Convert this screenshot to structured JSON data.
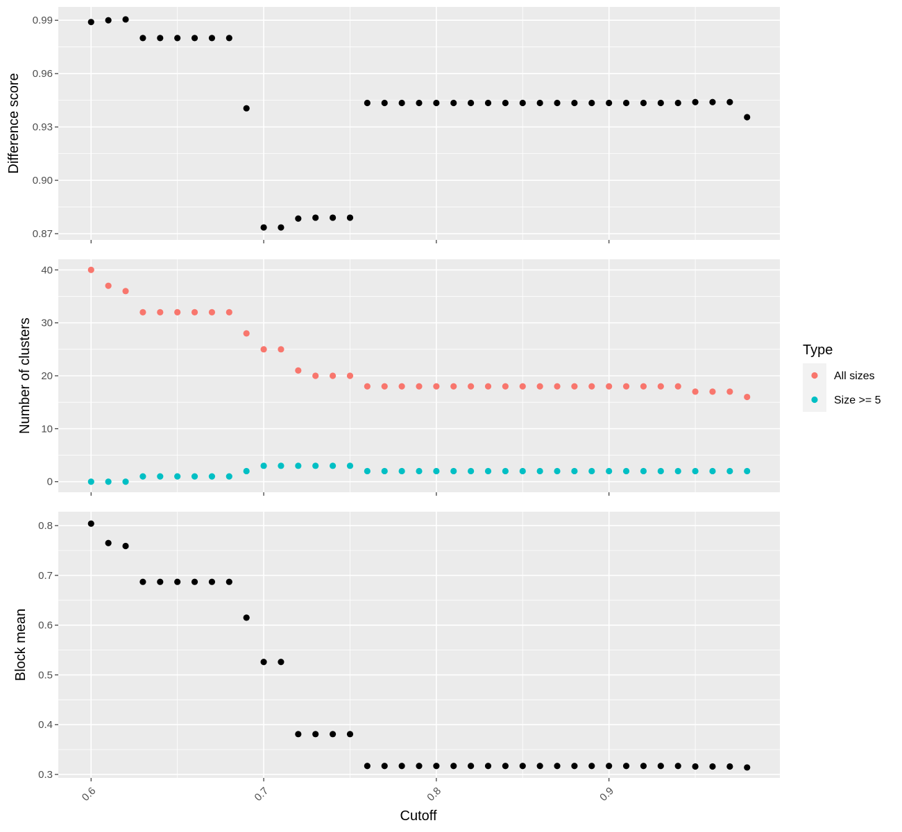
{
  "chart_data": [
    {
      "type": "scatter",
      "ylabel": "Difference score",
      "xlabel": "",
      "xlim": [
        0.581,
        0.999
      ],
      "ylim": [
        0.8665,
        0.9975
      ],
      "yticks": [
        "0.87",
        "0.90",
        "0.93",
        "0.96",
        "0.99"
      ],
      "yticks_values": [
        0.87,
        0.9,
        0.93,
        0.96,
        0.99
      ],
      "grid": true,
      "x": [
        0.6,
        0.61,
        0.62,
        0.63,
        0.64,
        0.65,
        0.66,
        0.67,
        0.68,
        0.69,
        0.7,
        0.71,
        0.72,
        0.73,
        0.74,
        0.75,
        0.76,
        0.77,
        0.78,
        0.79,
        0.8,
        0.81,
        0.82,
        0.83,
        0.84,
        0.85,
        0.86,
        0.87,
        0.88,
        0.89,
        0.9,
        0.91,
        0.92,
        0.93,
        0.94,
        0.95,
        0.96,
        0.97,
        0.98
      ],
      "series": [
        {
          "color": "#000000",
          "values": [
            0.989,
            0.99,
            0.9905,
            0.98,
            0.98,
            0.98,
            0.98,
            0.98,
            0.98,
            0.9405,
            0.8735,
            0.8735,
            0.8785,
            0.879,
            0.879,
            0.879,
            0.9435,
            0.9435,
            0.9435,
            0.9435,
            0.9435,
            0.9435,
            0.9435,
            0.9435,
            0.9435,
            0.9435,
            0.9435,
            0.9435,
            0.9435,
            0.9435,
            0.9435,
            0.9435,
            0.9435,
            0.9435,
            0.9435,
            0.944,
            0.944,
            0.944,
            0.9355
          ]
        }
      ]
    },
    {
      "type": "scatter",
      "ylabel": "Number of clusters",
      "xlabel": "",
      "xlim": [
        0.581,
        0.999
      ],
      "ylim": [
        -2,
        42
      ],
      "yticks": [
        "0",
        "10",
        "20",
        "30",
        "40"
      ],
      "yticks_values": [
        0,
        10,
        20,
        30,
        40
      ],
      "grid": true,
      "x": [
        0.6,
        0.61,
        0.62,
        0.63,
        0.64,
        0.65,
        0.66,
        0.67,
        0.68,
        0.69,
        0.7,
        0.71,
        0.72,
        0.73,
        0.74,
        0.75,
        0.76,
        0.77,
        0.78,
        0.79,
        0.8,
        0.81,
        0.82,
        0.83,
        0.84,
        0.85,
        0.86,
        0.87,
        0.88,
        0.89,
        0.9,
        0.91,
        0.92,
        0.93,
        0.94,
        0.95,
        0.96,
        0.97,
        0.98
      ],
      "legend_title": "Type",
      "legend_position": "right",
      "series": [
        {
          "name": "All sizes",
          "color": "#F8766D",
          "values": [
            40,
            37,
            36,
            32,
            32,
            32,
            32,
            32,
            32,
            28,
            25,
            25,
            21,
            20,
            20,
            20,
            18,
            18,
            18,
            18,
            18,
            18,
            18,
            18,
            18,
            18,
            18,
            18,
            18,
            18,
            18,
            18,
            18,
            18,
            18,
            17,
            17,
            17,
            16
          ]
        },
        {
          "name": "Size >= 5",
          "color": "#00BFC4",
          "values": [
            0,
            0,
            0,
            1,
            1,
            1,
            1,
            1,
            1,
            2,
            3,
            3,
            3,
            3,
            3,
            3,
            2,
            2,
            2,
            2,
            2,
            2,
            2,
            2,
            2,
            2,
            2,
            2,
            2,
            2,
            2,
            2,
            2,
            2,
            2,
            2,
            2,
            2,
            2
          ]
        }
      ]
    },
    {
      "type": "scatter",
      "ylabel": "Block mean",
      "xlabel": "Cutoff",
      "xlim": [
        0.581,
        0.999
      ],
      "ylim": [
        0.293,
        0.828
      ],
      "yticks": [
        "0.3",
        "0.4",
        "0.5",
        "0.6",
        "0.7",
        "0.8"
      ],
      "yticks_values": [
        0.3,
        0.4,
        0.5,
        0.6,
        0.7,
        0.8
      ],
      "xticks": [
        "0.6",
        "0.7",
        "0.8",
        "0.9"
      ],
      "xticks_values": [
        0.6,
        0.7,
        0.8,
        0.9
      ],
      "grid": true,
      "x": [
        0.6,
        0.61,
        0.62,
        0.63,
        0.64,
        0.65,
        0.66,
        0.67,
        0.68,
        0.69,
        0.7,
        0.71,
        0.72,
        0.73,
        0.74,
        0.75,
        0.76,
        0.77,
        0.78,
        0.79,
        0.8,
        0.81,
        0.82,
        0.83,
        0.84,
        0.85,
        0.86,
        0.87,
        0.88,
        0.89,
        0.9,
        0.91,
        0.92,
        0.93,
        0.94,
        0.95,
        0.96,
        0.97,
        0.98
      ],
      "series": [
        {
          "color": "#000000",
          "values": [
            0.804,
            0.765,
            0.759,
            0.687,
            0.687,
            0.687,
            0.687,
            0.687,
            0.687,
            0.615,
            0.526,
            0.526,
            0.381,
            0.381,
            0.381,
            0.381,
            0.317,
            0.317,
            0.317,
            0.317,
            0.317,
            0.317,
            0.317,
            0.317,
            0.317,
            0.317,
            0.317,
            0.317,
            0.317,
            0.317,
            0.317,
            0.317,
            0.317,
            0.317,
            0.317,
            0.316,
            0.316,
            0.316,
            0.314
          ]
        }
      ]
    }
  ]
}
